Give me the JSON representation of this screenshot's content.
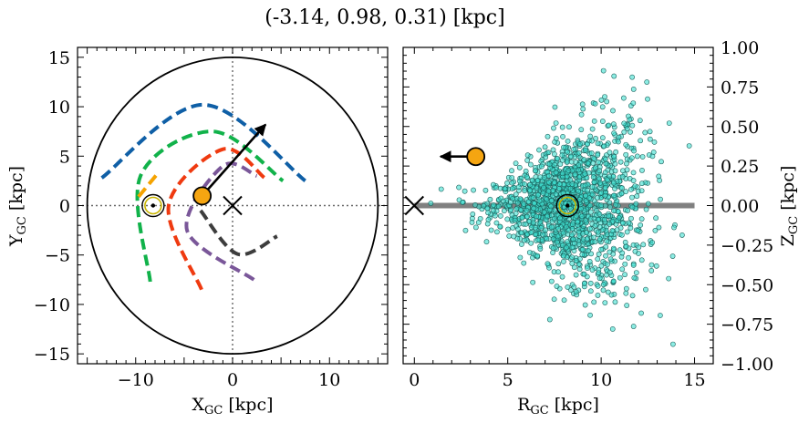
{
  "figure": {
    "title": "(-3.14, 0.98, 0.31) [kpc]"
  },
  "chart_data": [
    {
      "type": "scatter",
      "panel": "left",
      "xlabel": "X_GC [kpc]",
      "ylabel": "Y_GC [kpc]",
      "xlim": [
        -16,
        16
      ],
      "ylim": [
        -16,
        16
      ],
      "xticks": [
        -10,
        0,
        10
      ],
      "yticks": [
        -15,
        -10,
        -5,
        0,
        5,
        10,
        15
      ],
      "grid": false,
      "galaxy_radius_kpc": 15,
      "sun": {
        "x": -8.2,
        "y": 0.0
      },
      "galactic_center": {
        "x": 0.0,
        "y": 0.0
      },
      "object": {
        "x": -3.14,
        "y": 0.98
      },
      "velocity_arrow": {
        "from": [
          -3.14,
          0.98
        ],
        "to": [
          3.4,
          8.2
        ]
      },
      "spiral_arms": [
        {
          "color": "#0f5fa6",
          "start": [
            -13.5,
            2.8
          ],
          "peak": [
            -3.0,
            10.2
          ],
          "end": [
            7.5,
            2.5
          ]
        },
        {
          "color": "#11b24a",
          "start": [
            -8.5,
            -7.7
          ],
          "mid": [
            -9.5,
            3.0
          ],
          "peak": [
            -2.0,
            7.5
          ],
          "end": [
            5.2,
            2.5
          ]
        },
        {
          "color": "#f5a300",
          "start": [
            -9.7,
            0.9
          ],
          "end": [
            -7.6,
            3.4
          ]
        },
        {
          "color": "#ef3a10",
          "start": [
            -3.2,
            -8.5
          ],
          "mid": [
            -6.6,
            0.0
          ],
          "peak": [
            -1.0,
            5.7
          ],
          "end": [
            3.3,
            2.8
          ]
        },
        {
          "color": "#7a5799",
          "start": [
            2.2,
            -7.5
          ],
          "mid": [
            -4.7,
            -2.5
          ],
          "peak": [
            -1.0,
            4.0
          ],
          "end": [
            2.5,
            3.0
          ]
        },
        {
          "color": "#3d3d3d",
          "start": [
            -3.3,
            -0.5
          ],
          "bottom": [
            0.5,
            -4.9
          ],
          "end": [
            4.6,
            -3.1
          ]
        }
      ]
    },
    {
      "type": "scatter",
      "panel": "right",
      "xlabel": "R_GC [kpc]",
      "ylabel": "Z_GC [kpc]",
      "xlim": [
        -0.6,
        16
      ],
      "ylim": [
        -1.0,
        1.0
      ],
      "xticks": [
        0,
        5,
        10,
        15
      ],
      "yticks": [
        -1.0,
        -0.75,
        -0.5,
        -0.25,
        0.0,
        0.25,
        0.5,
        0.75,
        1.0
      ],
      "ytick_labels": [
        "−1.00",
        "−0.75",
        "−0.50",
        "−0.25",
        "0.00",
        "0.25",
        "0.50",
        "0.75",
        "1.00"
      ],
      "grid": false,
      "disk_plane": {
        "x": [
          0,
          15
        ],
        "z": 0.0
      },
      "sun": {
        "r": 8.2,
        "z": 0.0
      },
      "galactic_center": {
        "r": 0.0,
        "z": 0.0
      },
      "object": {
        "r": 3.29,
        "z": 0.31
      },
      "velocity_arrow": {
        "from": [
          3.29,
          0.31
        ],
        "to": [
          1.4,
          0.31
        ]
      },
      "stars": {
        "color": "#40e0d0",
        "edge": "#1a5f5a",
        "count_estimate": 1500,
        "r_center": 8.4,
        "r_spread": 2.0,
        "z_spread": 0.18
      }
    }
  ],
  "colors": {
    "star_fill": "#40e0d0",
    "object_fill": "#f5a511",
    "sun_ring": "#c8b400",
    "disk_plane": "#808080"
  }
}
